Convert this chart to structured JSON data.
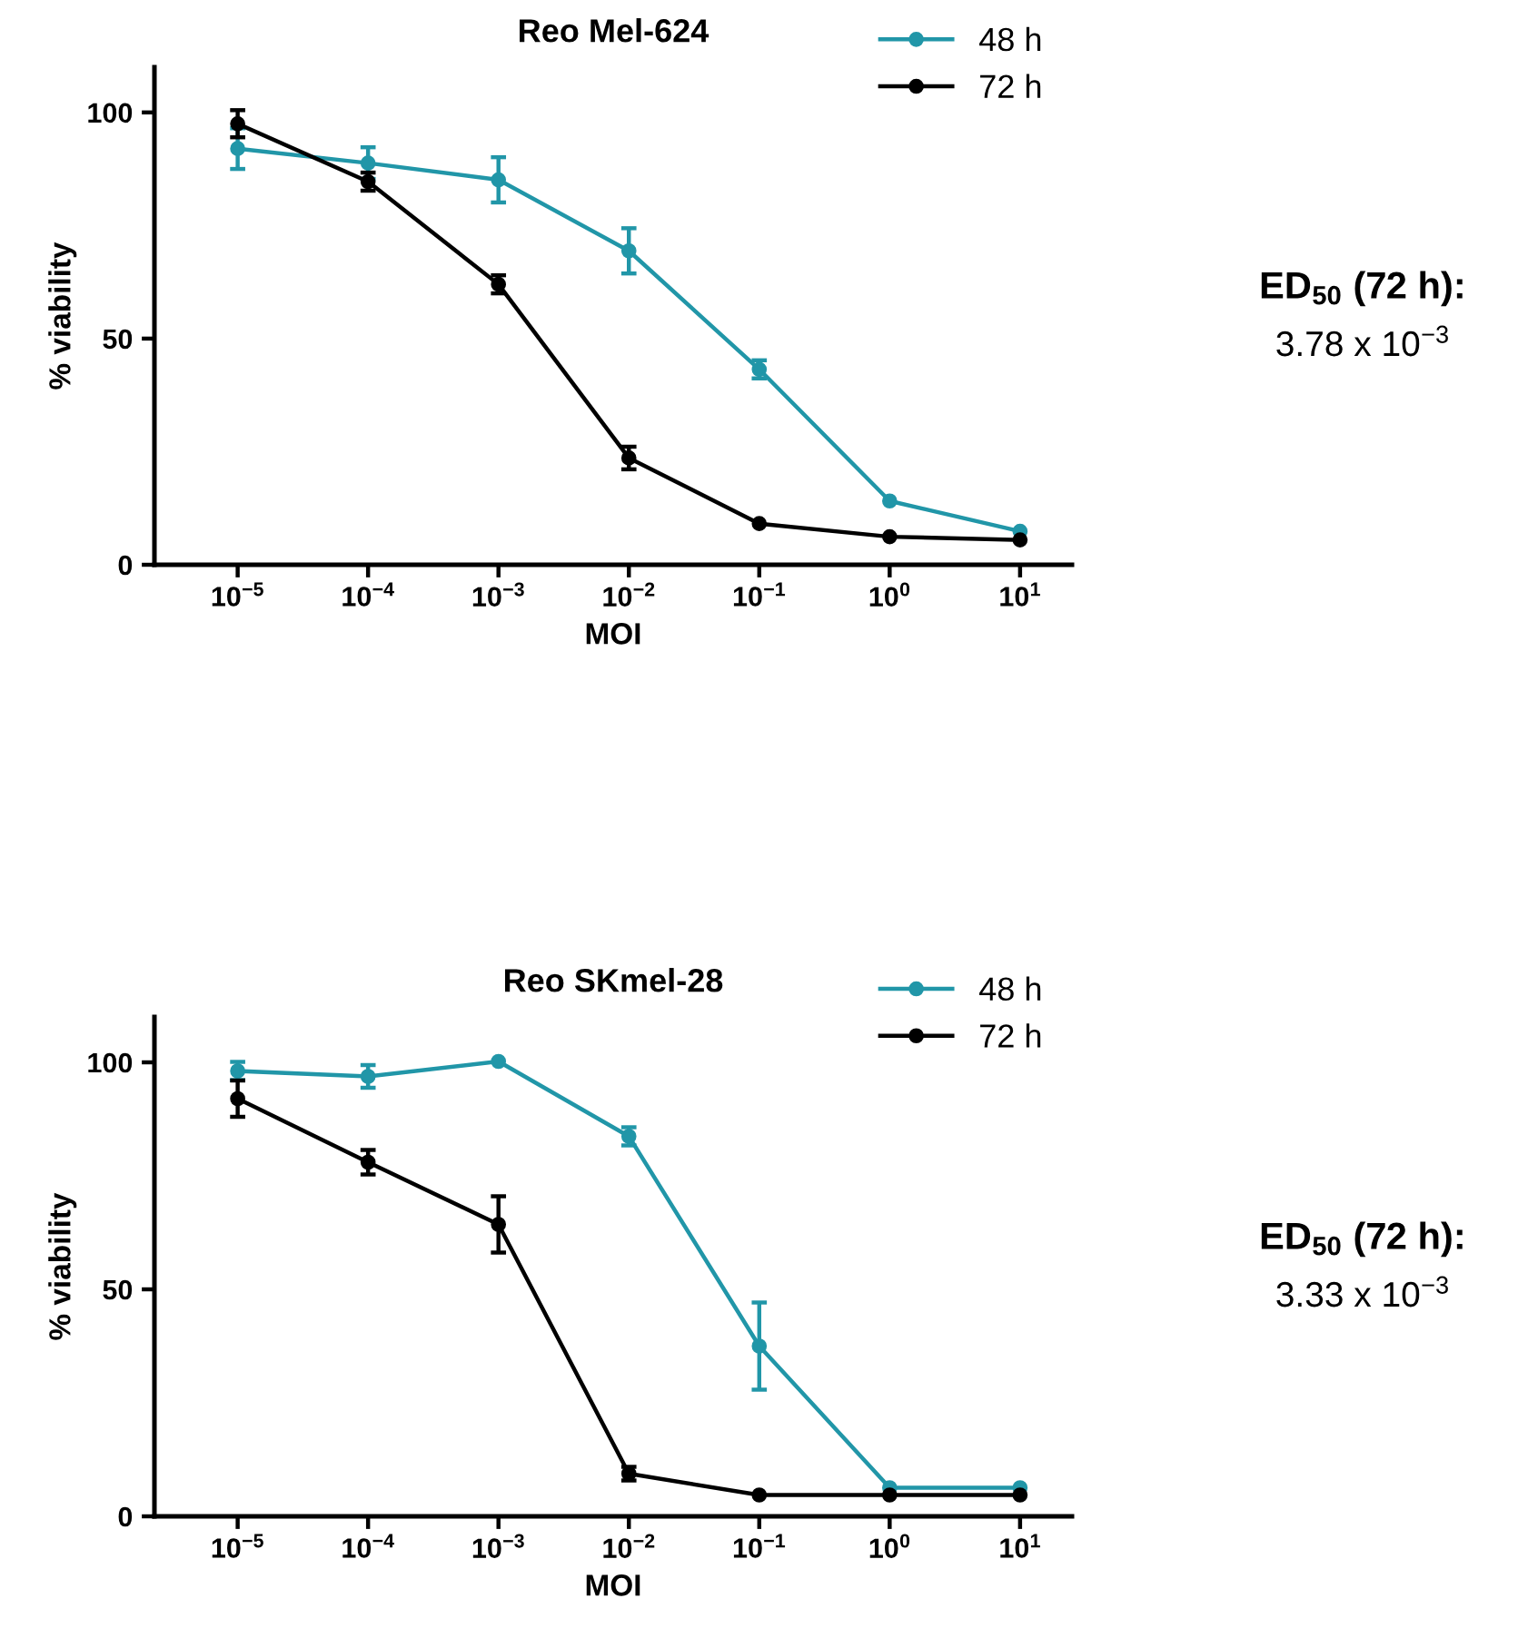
{
  "chart_data": [
    {
      "type": "line",
      "title": "Reo Mel-624",
      "xlabel": "MOI",
      "ylabel": "% viability",
      "log": "x",
      "x": [
        1e-05,
        0.0001,
        0.001,
        0.01,
        0.1,
        1,
        10
      ],
      "series": [
        {
          "name": "48 h",
          "color": "#2196a8",
          "values": [
            92,
            88.8,
            85.1,
            69.4,
            43.2,
            14.1,
            7.4
          ],
          "errors": [
            4.5,
            3.5,
            5,
            5,
            2,
            null,
            null
          ]
        },
        {
          "name": "72 h",
          "color": "#000000",
          "values": [
            97.5,
            84.7,
            62,
            23.6,
            9.1,
            6.2,
            5.5
          ],
          "errors": [
            3,
            2,
            2,
            2.5,
            null,
            null,
            null
          ]
        }
      ],
      "xlim": [
        2.3e-06,
        25
      ],
      "ylim": [
        0,
        110
      ],
      "yticks": [
        0,
        50,
        100
      ],
      "xticks": [
        {
          "value": 1e-05,
          "label": "10$^{−5}$"
        },
        {
          "value": 0.0001,
          "label": "10$^{−4}$"
        },
        {
          "value": 0.001,
          "label": "10$^{−3}$"
        },
        {
          "value": 0.01,
          "label": "10$^{−2}$"
        },
        {
          "value": 0.1,
          "label": "10$^{−1}$"
        },
        {
          "value": 1,
          "label": "10$^{0}$"
        },
        {
          "value": 10,
          "label": "10$^{1}$"
        }
      ],
      "marker": "circle",
      "line_style": "solid",
      "grid": false,
      "legend": "top right",
      "annotations": [
        "ED$_{50}$ (72 h):",
        "3.78 x 10$^{−3}$"
      ]
    },
    {
      "type": "line",
      "title": "Reo SKmel-28",
      "xlabel": "MOI",
      "ylabel": "% viability",
      "log": "x",
      "x": [
        1e-05,
        0.0001,
        0.001,
        0.01,
        0.1,
        1,
        10
      ],
      "series": [
        {
          "name": "48 h",
          "color": "#2196a8",
          "values": [
            98.1,
            96.9,
            100.2,
            83.7,
            37.5,
            6.3,
            6.3
          ],
          "errors": [
            2,
            2.5,
            null,
            2,
            9.6,
            null,
            null
          ]
        },
        {
          "name": "72 h",
          "color": "#000000",
          "values": [
            92,
            78,
            64.3,
            9.4,
            4.7,
            4.7,
            4.7
          ],
          "errors": [
            4,
            2.7,
            6.2,
            1.5,
            null,
            null,
            null
          ]
        }
      ],
      "xlim": [
        2.3e-06,
        25
      ],
      "ylim": [
        0,
        110
      ],
      "yticks": [
        0,
        50,
        100
      ],
      "xticks": [
        {
          "value": 1e-05,
          "label": "10$^{−5}$"
        },
        {
          "value": 0.0001,
          "label": "10$^{−4}$"
        },
        {
          "value": 0.001,
          "label": "10$^{−3}$"
        },
        {
          "value": 0.01,
          "label": "10$^{−2}$"
        },
        {
          "value": 0.1,
          "label": "10$^{−1}$"
        },
        {
          "value": 1,
          "label": "10$^{0}$"
        },
        {
          "value": 10,
          "label": "10$^{1}$"
        }
      ],
      "marker": "circle",
      "line_style": "solid",
      "grid": false,
      "legend": "top right",
      "annotations": [
        "ED$_{50}$ (72 h):",
        "3.33 x 10$^{−3}$"
      ]
    }
  ]
}
